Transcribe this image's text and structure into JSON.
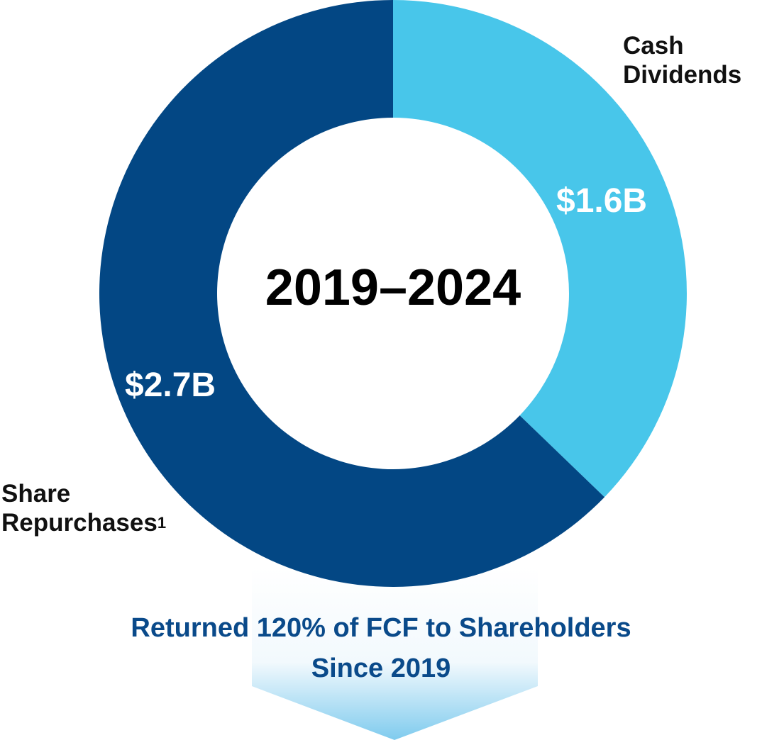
{
  "chart_data": {
    "type": "pie",
    "subtype": "donut",
    "title": "2019–2024",
    "categories": [
      "Cash Dividends",
      "Share Repurchases"
    ],
    "values": [
      1.6,
      2.7
    ],
    "value_labels": [
      "$1.6B",
      "$2.7B"
    ],
    "unit": "USD billions",
    "colors": [
      "#48c6ea",
      "#034784"
    ],
    "start_angle_deg": 0,
    "direction": "clockwise",
    "annotation": "Returned 120% of FCF to Shareholders Since 2019",
    "footnotes": {
      "Share Repurchases": "1"
    }
  },
  "labels": {
    "center": "2019–2024",
    "dividends_line1": "Cash",
    "dividends_line2": "Dividends",
    "dividends_value": "$1.6B",
    "repurchases_line1": "Share",
    "repurchases_line2": "Repurchases",
    "repurchases_footnote": "1",
    "repurchases_value": "$2.7B"
  },
  "banner": {
    "line1": "Returned 120% of FCF to Shareholders",
    "line2": "Since 2019",
    "text_color": "#0a4a8a",
    "gradient_top": "#ffffff",
    "gradient_bottom": "#7fcbee"
  }
}
